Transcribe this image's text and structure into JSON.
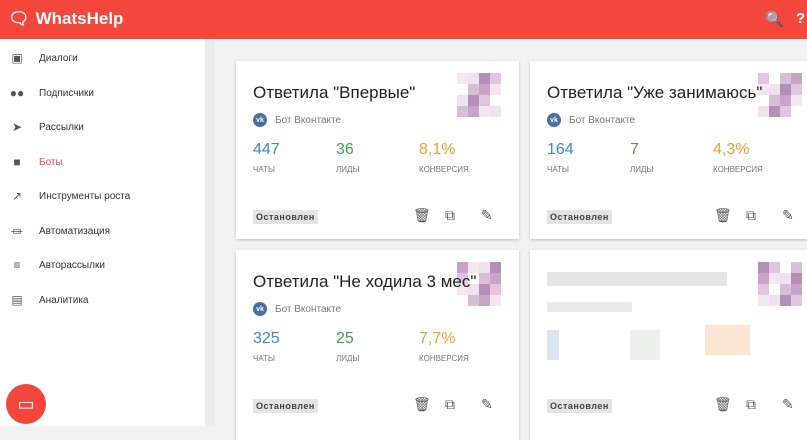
{
  "header": {
    "brand": "WhatsHelp",
    "search_icon": "search-icon",
    "help_icon": "help-icon"
  },
  "sidebar": {
    "items": [
      {
        "label": "Диалоги",
        "icon": "chat-icon"
      },
      {
        "label": "Подписчики",
        "icon": "people-icon"
      },
      {
        "label": "Рассылки",
        "icon": "send-icon"
      },
      {
        "label": "Боты",
        "icon": "android-icon",
        "active": true
      },
      {
        "label": "Инструменты роста",
        "icon": "trending-icon"
      },
      {
        "label": "Автоматизация",
        "icon": "plug-icon"
      },
      {
        "label": "Авторассылки",
        "icon": "filter-icon"
      },
      {
        "label": "Аналитика",
        "icon": "analytics-icon"
      }
    ]
  },
  "colors": {
    "brand": "#f3463c",
    "chats": "#3a8ad6",
    "leads": "#43a047",
    "conversion": "#f0a030"
  },
  "cards": [
    {
      "title": "Ответила \"Впервые\"",
      "source": "Бот Вконтакте",
      "chats": "447",
      "chats_label": "ЧАТЫ",
      "leads": "36",
      "leads_label": "ЛИДЫ",
      "conv": "8,1%",
      "conv_label": "КОНВЕРСИЯ",
      "status": "Остановлен"
    },
    {
      "title": "Ответила \"Уже занимаюсь\"",
      "source": "Бот Вконтакте",
      "chats": "164",
      "chats_label": "ЧАТЫ",
      "leads": "7",
      "leads_label": "ЛИДЫ",
      "conv": "4,3%",
      "conv_label": "КОНВЕРСИЯ",
      "status": "Остановлен"
    },
    {
      "title": "Ответила \"Не ходила 3 мес\"",
      "source": "Бот Вконтакте",
      "chats": "325",
      "chats_label": "ЧАТЫ",
      "leads": "25",
      "leads_label": "ЛИДЫ",
      "conv": "7,7%",
      "conv_label": "КОНВЕРСИЯ",
      "status": "Остановлен"
    },
    {
      "status": "Остановлен"
    }
  ]
}
